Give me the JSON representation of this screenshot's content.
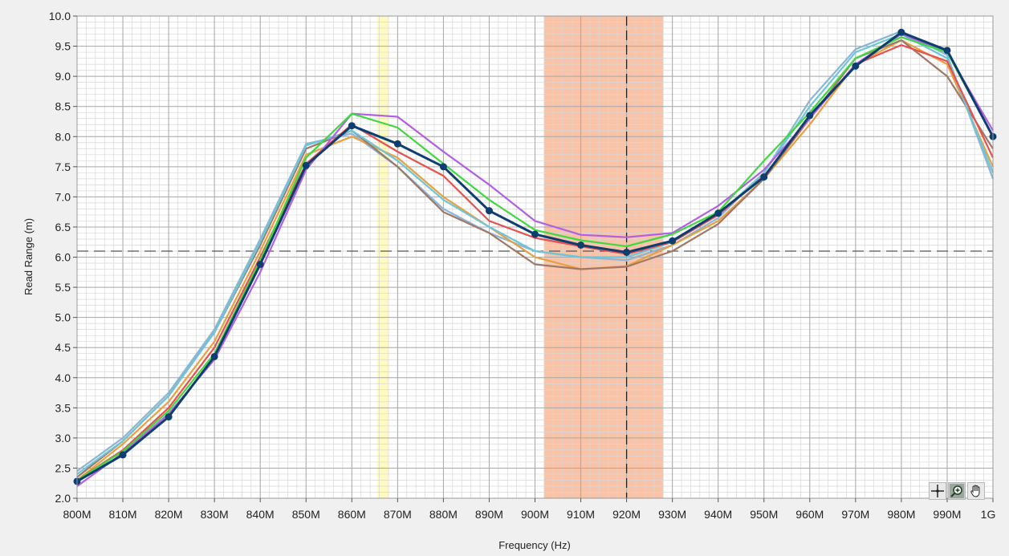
{
  "chart_data": {
    "type": "line",
    "title": "",
    "xlabel": "Frequency (Hz)",
    "ylabel": "Read Range (m)",
    "xlim": [
      800,
      1000
    ],
    "ylim": [
      2.0,
      10.0
    ],
    "x": [
      800,
      810,
      820,
      830,
      840,
      850,
      860,
      870,
      880,
      890,
      900,
      910,
      920,
      930,
      940,
      950,
      960,
      970,
      980,
      990,
      1000
    ],
    "x_tick_values": [
      800,
      810,
      820,
      830,
      840,
      850,
      860,
      870,
      880,
      890,
      900,
      910,
      920,
      930,
      940,
      950,
      960,
      970,
      980,
      990,
      1000
    ],
    "x_tick_labels": [
      "800M",
      "810M",
      "820M",
      "830M",
      "840M",
      "850M",
      "860M",
      "870M",
      "880M",
      "890M",
      "900M",
      "910M",
      "920M",
      "930M",
      "940M",
      "950M",
      "960M",
      "970M",
      "980M",
      "990M",
      "1G"
    ],
    "y_tick_values": [
      2.0,
      2.5,
      3.0,
      3.5,
      4.0,
      4.5,
      5.0,
      5.5,
      6.0,
      6.5,
      7.0,
      7.5,
      8.0,
      8.5,
      9.0,
      9.5,
      10.0
    ],
    "y_tick_labels": [
      "2.0",
      "2.5",
      "3.0",
      "3.5",
      "4.0",
      "4.5",
      "5.0",
      "5.5",
      "6.0",
      "6.5",
      "7.0",
      "7.5",
      "8.0",
      "8.5",
      "9.0",
      "9.5",
      "10.0"
    ],
    "grid": true,
    "minor_grid": true,
    "bands": [
      {
        "from": 865.5,
        "to": 868,
        "color": "#fffbc0"
      },
      {
        "from": 902,
        "to": 928,
        "color": "#f9c3a8"
      }
    ],
    "reference_lines": [
      {
        "orientation": "horizontal",
        "value": 6.1,
        "style": "dashed",
        "color": "#555555"
      },
      {
        "orientation": "vertical",
        "value": 920,
        "style": "dashed",
        "color": "#222222"
      }
    ],
    "series": [
      {
        "color": "#8bb5d6",
        "markers": false,
        "values": [
          2.45,
          3.0,
          3.75,
          4.8,
          6.3,
          7.88,
          8.05,
          7.5,
          6.8,
          6.4,
          6.1,
          6.0,
          5.95,
          6.2,
          6.65,
          7.4,
          8.6,
          9.45,
          9.75,
          9.35,
          7.3
        ]
      },
      {
        "color": "#e8a040",
        "markers": false,
        "values": [
          2.3,
          2.9,
          3.6,
          4.6,
          6.1,
          7.7,
          8.0,
          7.65,
          7.0,
          6.5,
          6.0,
          5.8,
          5.85,
          6.2,
          6.6,
          7.3,
          8.2,
          9.2,
          9.6,
          9.2,
          7.5
        ]
      },
      {
        "color": "#a07868",
        "markers": false,
        "values": [
          2.35,
          2.95,
          3.7,
          4.75,
          6.2,
          7.8,
          8.1,
          7.5,
          6.75,
          6.4,
          5.88,
          5.8,
          5.84,
          6.1,
          6.55,
          7.3,
          8.3,
          9.3,
          9.6,
          9.0,
          7.8
        ]
      },
      {
        "color": "#6cc6d8",
        "markers": false,
        "values": [
          2.4,
          2.95,
          3.7,
          4.75,
          6.25,
          7.85,
          8.1,
          7.6,
          6.95,
          6.5,
          6.1,
          6.0,
          6.0,
          6.25,
          6.7,
          7.4,
          8.5,
          9.4,
          9.7,
          9.3,
          7.4
        ]
      },
      {
        "color": "#e85050",
        "markers": false,
        "values": [
          2.3,
          2.8,
          3.5,
          4.5,
          6.0,
          7.55,
          8.2,
          7.75,
          7.35,
          6.6,
          6.32,
          6.18,
          6.05,
          6.25,
          6.7,
          7.35,
          8.3,
          9.2,
          9.52,
          9.25,
          7.65
        ]
      },
      {
        "color": "#b060e0",
        "markers": false,
        "values": [
          2.2,
          2.75,
          3.4,
          4.3,
          5.75,
          7.45,
          8.38,
          8.33,
          7.75,
          7.2,
          6.6,
          6.37,
          6.33,
          6.4,
          6.85,
          7.45,
          8.3,
          9.2,
          9.7,
          9.4,
          8.1
        ]
      },
      {
        "color": "#40d840",
        "markers": false,
        "values": [
          2.3,
          2.78,
          3.45,
          4.4,
          5.95,
          7.65,
          8.38,
          8.15,
          7.55,
          6.95,
          6.45,
          6.28,
          6.18,
          6.38,
          6.75,
          7.6,
          8.4,
          9.3,
          9.65,
          9.4,
          8.0
        ]
      },
      {
        "color": "#0e3d70",
        "markers": true,
        "values": [
          2.28,
          2.72,
          3.35,
          4.35,
          5.88,
          7.52,
          8.18,
          7.88,
          7.5,
          6.77,
          6.38,
          6.2,
          6.08,
          6.27,
          6.73,
          7.33,
          8.35,
          9.17,
          9.73,
          9.43,
          8.0
        ]
      }
    ]
  },
  "toolbar": {
    "cursor_icon": "crosshair-cursor-icon",
    "zoom_icon": "zoom-icon",
    "pan_icon": "pan-hand-icon"
  }
}
